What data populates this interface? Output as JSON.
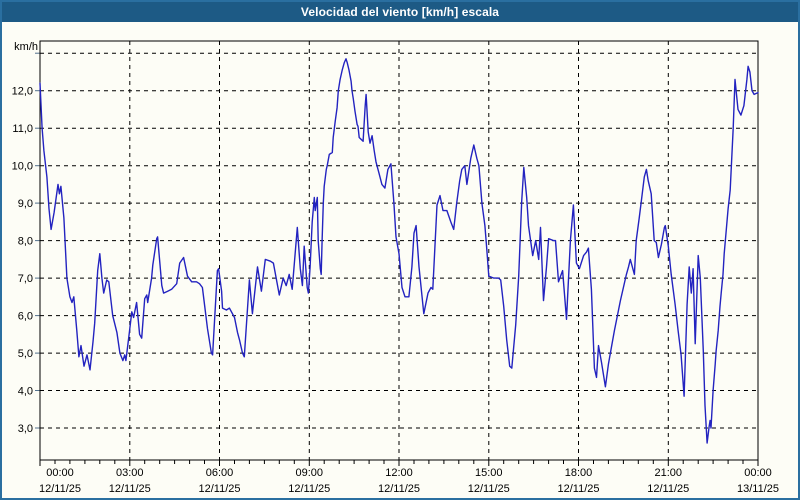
{
  "window": {
    "title": "Velocidad del viento [km/h] escala",
    "title_bg": "#1d5a85",
    "border_color": "#2a6fa0",
    "bg": "#fdfdf6"
  },
  "chart_data": {
    "type": "line",
    "title": "Velocidad del viento [km/h] escala",
    "ylabel": "km/h",
    "xlabel": "",
    "line_color": "#2323c0",
    "grid": true,
    "legend": "none",
    "ylim": [
      2.1,
      13.3
    ],
    "xlim_hours": [
      0,
      24
    ],
    "y_ticks": [
      {
        "value": 13,
        "label": ""
      },
      {
        "value": 12,
        "label": "12,0"
      },
      {
        "value": 11,
        "label": "11,0"
      },
      {
        "value": 10,
        "label": "10,0"
      },
      {
        "value": 9,
        "label": "9,0"
      },
      {
        "value": 8,
        "label": "8,0"
      },
      {
        "value": 7,
        "label": "7,0"
      },
      {
        "value": 6,
        "label": "6,0"
      },
      {
        "value": 5,
        "label": "5,0"
      },
      {
        "value": 4,
        "label": "4,0"
      },
      {
        "value": 3,
        "label": "3,0"
      }
    ],
    "x_ticks": [
      {
        "hour": 0,
        "time": "00:00",
        "date": "12/11/25"
      },
      {
        "hour": 3,
        "time": "03:00",
        "date": "12/11/25"
      },
      {
        "hour": 6,
        "time": "06:00",
        "date": "12/11/25"
      },
      {
        "hour": 9,
        "time": "09:00",
        "date": "12/11/25"
      },
      {
        "hour": 12,
        "time": "12:00",
        "date": "12/11/25"
      },
      {
        "hour": 15,
        "time": "15:00",
        "date": "12/11/25"
      },
      {
        "hour": 18,
        "time": "18:00",
        "date": "12/11/25"
      },
      {
        "hour": 21,
        "time": "21:00",
        "date": "12/11/25"
      },
      {
        "hour": 24,
        "time": "00:00",
        "date": "13/11/25"
      }
    ],
    "points": [
      [
        0,
        12.2
      ],
      [
        0.07,
        11.0
      ],
      [
        0.13,
        10.4
      ],
      [
        0.23,
        9.7
      ],
      [
        0.3,
        8.85
      ],
      [
        0.37,
        8.3
      ],
      [
        0.47,
        8.75
      ],
      [
        0.6,
        9.5
      ],
      [
        0.65,
        9.25
      ],
      [
        0.7,
        9.45
      ],
      [
        0.8,
        8.6
      ],
      [
        0.9,
        7.0
      ],
      [
        1.0,
        6.5
      ],
      [
        1.07,
        6.35
      ],
      [
        1.13,
        6.5
      ],
      [
        1.23,
        5.6
      ],
      [
        1.3,
        4.9
      ],
      [
        1.37,
        5.2
      ],
      [
        1.47,
        4.65
      ],
      [
        1.57,
        4.95
      ],
      [
        1.67,
        4.55
      ],
      [
        1.77,
        5.3
      ],
      [
        1.83,
        5.8
      ],
      [
        1.93,
        7.2
      ],
      [
        2.0,
        7.65
      ],
      [
        2.07,
        7.0
      ],
      [
        2.13,
        6.6
      ],
      [
        2.23,
        6.95
      ],
      [
        2.3,
        6.9
      ],
      [
        2.43,
        6.0
      ],
      [
        2.57,
        5.55
      ],
      [
        2.67,
        5.0
      ],
      [
        2.77,
        4.8
      ],
      [
        2.83,
        4.95
      ],
      [
        2.87,
        4.8
      ],
      [
        2.97,
        5.45
      ],
      [
        3.07,
        6.1
      ],
      [
        3.13,
        5.95
      ],
      [
        3.23,
        6.35
      ],
      [
        3.33,
        5.5
      ],
      [
        3.4,
        5.4
      ],
      [
        3.5,
        6.45
      ],
      [
        3.57,
        6.55
      ],
      [
        3.6,
        6.35
      ],
      [
        3.73,
        7.0
      ],
      [
        3.77,
        7.35
      ],
      [
        3.9,
        8.05
      ],
      [
        3.93,
        8.1
      ],
      [
        4.0,
        7.45
      ],
      [
        4.07,
        6.8
      ],
      [
        4.13,
        6.6
      ],
      [
        4.27,
        6.65
      ],
      [
        4.4,
        6.7
      ],
      [
        4.57,
        6.85
      ],
      [
        4.67,
        7.4
      ],
      [
        4.8,
        7.55
      ],
      [
        4.93,
        7.05
      ],
      [
        5.07,
        6.9
      ],
      [
        5.23,
        6.9
      ],
      [
        5.33,
        6.85
      ],
      [
        5.43,
        6.75
      ],
      [
        5.6,
        5.65
      ],
      [
        5.73,
        5.0
      ],
      [
        5.77,
        4.95
      ],
      [
        5.93,
        7.2
      ],
      [
        5.97,
        7.25
      ],
      [
        6.07,
        6.65
      ],
      [
        6.1,
        6.2
      ],
      [
        6.23,
        6.15
      ],
      [
        6.33,
        6.2
      ],
      [
        6.5,
        5.95
      ],
      [
        6.6,
        5.55
      ],
      [
        6.67,
        5.35
      ],
      [
        6.77,
        5.0
      ],
      [
        6.83,
        4.9
      ],
      [
        7.0,
        6.95
      ],
      [
        7.1,
        6.05
      ],
      [
        7.27,
        7.3
      ],
      [
        7.4,
        6.65
      ],
      [
        7.53,
        7.5
      ],
      [
        7.7,
        7.45
      ],
      [
        7.8,
        7.4
      ],
      [
        8.0,
        6.55
      ],
      [
        8.13,
        7.0
      ],
      [
        8.23,
        6.8
      ],
      [
        8.33,
        7.1
      ],
      [
        8.43,
        6.7
      ],
      [
        8.6,
        8.35
      ],
      [
        8.7,
        7.25
      ],
      [
        8.77,
        6.8
      ],
      [
        8.83,
        7.85
      ],
      [
        8.93,
        6.75
      ],
      [
        8.97,
        6.6
      ],
      [
        9.03,
        7.3
      ],
      [
        9.1,
        8.5
      ],
      [
        9.17,
        9.15
      ],
      [
        9.2,
        8.8
      ],
      [
        9.27,
        9.15
      ],
      [
        9.3,
        8.0
      ],
      [
        9.37,
        7.25
      ],
      [
        9.4,
        7.1
      ],
      [
        9.43,
        8.0
      ],
      [
        9.47,
        9.0
      ],
      [
        9.5,
        9.45
      ],
      [
        9.57,
        9.9
      ],
      [
        9.6,
        10.0
      ],
      [
        9.67,
        10.3
      ],
      [
        9.77,
        10.35
      ],
      [
        9.8,
        10.75
      ],
      [
        9.87,
        11.2
      ],
      [
        9.93,
        11.55
      ],
      [
        9.97,
        12.0
      ],
      [
        10.03,
        12.3
      ],
      [
        10.1,
        12.55
      ],
      [
        10.17,
        12.75
      ],
      [
        10.23,
        12.85
      ],
      [
        10.27,
        12.75
      ],
      [
        10.33,
        12.55
      ],
      [
        10.4,
        12.25
      ],
      [
        10.43,
        12.0
      ],
      [
        10.47,
        11.8
      ],
      [
        10.53,
        11.45
      ],
      [
        10.6,
        11.1
      ],
      [
        10.63,
        11.05
      ],
      [
        10.67,
        10.75
      ],
      [
        10.8,
        10.65
      ],
      [
        10.87,
        11.6
      ],
      [
        10.9,
        11.9
      ],
      [
        10.97,
        10.9
      ],
      [
        11.03,
        10.6
      ],
      [
        11.1,
        10.8
      ],
      [
        11.17,
        10.4
      ],
      [
        11.23,
        10.1
      ],
      [
        11.33,
        9.8
      ],
      [
        11.43,
        9.5
      ],
      [
        11.53,
        9.4
      ],
      [
        11.63,
        9.9
      ],
      [
        11.73,
        10.05
      ],
      [
        11.83,
        9.0
      ],
      [
        11.9,
        8.1
      ],
      [
        12.0,
        7.65
      ],
      [
        12.1,
        6.75
      ],
      [
        12.2,
        6.5
      ],
      [
        12.33,
        6.5
      ],
      [
        12.43,
        7.3
      ],
      [
        12.5,
        8.2
      ],
      [
        12.57,
        8.4
      ],
      [
        12.67,
        7.3
      ],
      [
        12.83,
        6.05
      ],
      [
        12.97,
        6.6
      ],
      [
        13.07,
        6.75
      ],
      [
        13.13,
        6.7
      ],
      [
        13.27,
        8.95
      ],
      [
        13.37,
        9.2
      ],
      [
        13.47,
        8.8
      ],
      [
        13.6,
        8.8
      ],
      [
        13.73,
        8.5
      ],
      [
        13.83,
        8.3
      ],
      [
        13.93,
        9.0
      ],
      [
        14.03,
        9.6
      ],
      [
        14.1,
        9.9
      ],
      [
        14.2,
        10.0
      ],
      [
        14.27,
        9.5
      ],
      [
        14.4,
        10.2
      ],
      [
        14.5,
        10.55
      ],
      [
        14.6,
        10.2
      ],
      [
        14.67,
        10.0
      ],
      [
        14.77,
        9.0
      ],
      [
        14.87,
        8.4
      ],
      [
        14.93,
        7.8
      ],
      [
        15.0,
        7.05
      ],
      [
        15.17,
        7.0
      ],
      [
        15.33,
        7.0
      ],
      [
        15.4,
        6.95
      ],
      [
        15.5,
        6.25
      ],
      [
        15.6,
        5.35
      ],
      [
        15.7,
        4.65
      ],
      [
        15.77,
        4.6
      ],
      [
        15.9,
        5.75
      ],
      [
        16.0,
        7.05
      ],
      [
        16.1,
        9.05
      ],
      [
        16.17,
        9.95
      ],
      [
        16.27,
        9.15
      ],
      [
        16.33,
        8.4
      ],
      [
        16.47,
        7.6
      ],
      [
        16.57,
        8.0
      ],
      [
        16.67,
        7.5
      ],
      [
        16.73,
        8.35
      ],
      [
        16.83,
        6.4
      ],
      [
        16.93,
        7.3
      ],
      [
        17.0,
        8.05
      ],
      [
        17.17,
        8.0
      ],
      [
        17.23,
        8.0
      ],
      [
        17.33,
        6.9
      ],
      [
        17.47,
        7.2
      ],
      [
        17.6,
        5.9
      ],
      [
        17.73,
        8.0
      ],
      [
        17.83,
        8.95
      ],
      [
        17.93,
        7.4
      ],
      [
        18.03,
        7.25
      ],
      [
        18.17,
        7.6
      ],
      [
        18.27,
        7.7
      ],
      [
        18.33,
        7.8
      ],
      [
        18.43,
        6.7
      ],
      [
        18.53,
        4.6
      ],
      [
        18.6,
        4.35
      ],
      [
        18.67,
        5.2
      ],
      [
        18.77,
        4.75
      ],
      [
        18.9,
        4.1
      ],
      [
        19.0,
        4.7
      ],
      [
        19.1,
        5.15
      ],
      [
        19.2,
        5.6
      ],
      [
        19.3,
        6.0
      ],
      [
        19.4,
        6.4
      ],
      [
        19.5,
        6.75
      ],
      [
        19.6,
        7.1
      ],
      [
        19.67,
        7.3
      ],
      [
        19.73,
        7.5
      ],
      [
        19.87,
        7.1
      ],
      [
        19.93,
        8.0
      ],
      [
        20.03,
        8.6
      ],
      [
        20.1,
        9.05
      ],
      [
        20.2,
        9.7
      ],
      [
        20.27,
        9.9
      ],
      [
        20.33,
        9.6
      ],
      [
        20.43,
        9.25
      ],
      [
        20.53,
        8.0
      ],
      [
        20.6,
        7.95
      ],
      [
        20.67,
        7.55
      ],
      [
        20.77,
        7.9
      ],
      [
        20.87,
        8.35
      ],
      [
        20.9,
        8.4
      ],
      [
        21.0,
        7.85
      ],
      [
        21.1,
        7.1
      ],
      [
        21.23,
        6.3
      ],
      [
        21.33,
        5.6
      ],
      [
        21.43,
        4.95
      ],
      [
        21.53,
        3.85
      ],
      [
        21.63,
        6.3
      ],
      [
        21.7,
        7.3
      ],
      [
        21.77,
        6.6
      ],
      [
        21.83,
        7.25
      ],
      [
        21.9,
        5.25
      ],
      [
        22.0,
        7.6
      ],
      [
        22.07,
        7.0
      ],
      [
        22.17,
        5.05
      ],
      [
        22.23,
        3.6
      ],
      [
        22.3,
        2.6
      ],
      [
        22.37,
        3.05
      ],
      [
        22.4,
        3.2
      ],
      [
        22.43,
        3.0
      ],
      [
        22.5,
        4.0
      ],
      [
        22.57,
        4.7
      ],
      [
        22.6,
        5.05
      ],
      [
        22.67,
        5.6
      ],
      [
        22.73,
        6.25
      ],
      [
        22.77,
        6.6
      ],
      [
        22.83,
        7.1
      ],
      [
        22.87,
        7.65
      ],
      [
        22.93,
        8.2
      ],
      [
        23.0,
        8.85
      ],
      [
        23.07,
        9.35
      ],
      [
        23.1,
        9.85
      ],
      [
        23.17,
        11.0
      ],
      [
        23.23,
        12.3
      ],
      [
        23.33,
        11.5
      ],
      [
        23.43,
        11.35
      ],
      [
        23.53,
        11.6
      ],
      [
        23.63,
        12.3
      ],
      [
        23.67,
        12.65
      ],
      [
        23.73,
        12.5
      ],
      [
        23.8,
        12.0
      ],
      [
        23.87,
        11.9
      ],
      [
        24.0,
        11.95
      ]
    ]
  }
}
